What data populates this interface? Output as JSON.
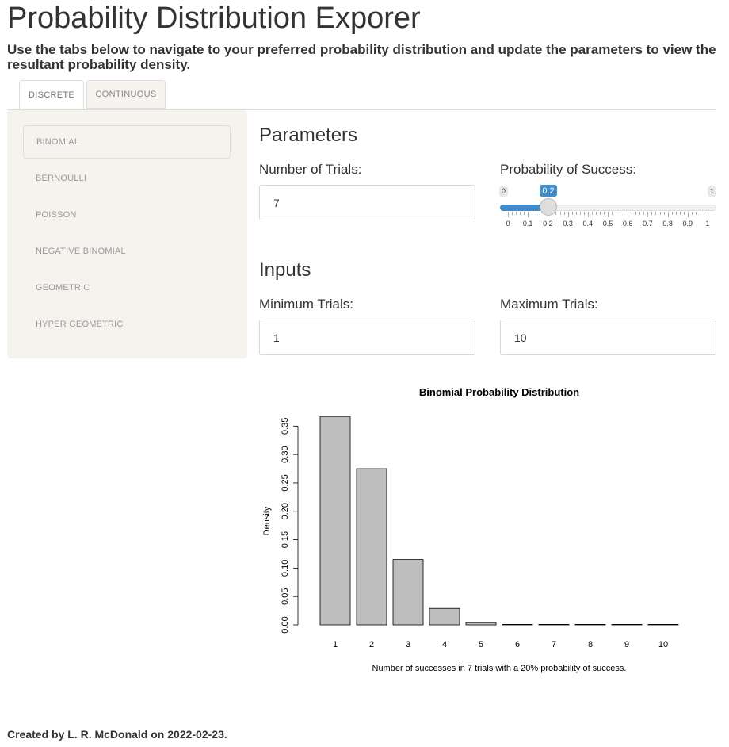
{
  "page": {
    "title": "Probability Distribution Exporer",
    "subtitle": "Use the tabs below to navigate to your preferred probability distribution and update the parameters to view the resultant probability density."
  },
  "tabs": [
    {
      "label": "DISCRETE",
      "active": true
    },
    {
      "label": "CONTINUOUS",
      "active": false
    }
  ],
  "sidebar": {
    "items": [
      {
        "label": "BINOMIAL",
        "active": true
      },
      {
        "label": "BERNOULLI"
      },
      {
        "label": "POISSON"
      },
      {
        "label": "NEGATIVE BINOMIAL"
      },
      {
        "label": "GEOMETRIC"
      },
      {
        "label": "HYPER GEOMETRIC"
      }
    ]
  },
  "parameters": {
    "heading": "Parameters",
    "trials_label": "Number of Trials:",
    "trials_value": "7",
    "prob_label": "Probability of Success:",
    "prob_min": "0",
    "prob_max": "1",
    "prob_value": "0.2",
    "prob_ticks": [
      "0",
      "0.1",
      "0.2",
      "0.3",
      "0.4",
      "0.5",
      "0.6",
      "0.7",
      "0.8",
      "0.9",
      "1"
    ]
  },
  "inputs": {
    "heading": "Inputs",
    "min_label": "Minimum Trials:",
    "min_value": "1",
    "max_label": "Maximum Trials:",
    "max_value": "10"
  },
  "chart_data": {
    "type": "bar",
    "title": "Binomial Probability Distribution",
    "xlabel": "Number of successes in 7 trials with a 20% probability of success.",
    "ylabel": "Density",
    "categories": [
      "1",
      "2",
      "3",
      "4",
      "5",
      "6",
      "7",
      "8",
      "9",
      "10"
    ],
    "values": [
      0.367,
      0.275,
      0.115,
      0.029,
      0.004,
      0.0004,
      1e-05,
      0,
      0,
      0
    ],
    "ylim": [
      0,
      0.37
    ],
    "yticks": [
      "0.00",
      "0.05",
      "0.10",
      "0.15",
      "0.20",
      "0.25",
      "0.30",
      "0.35"
    ],
    "bar_color": "#bebebe",
    "grid": false
  },
  "footer": "Created by L. R. McDonald on 2022-02-23."
}
